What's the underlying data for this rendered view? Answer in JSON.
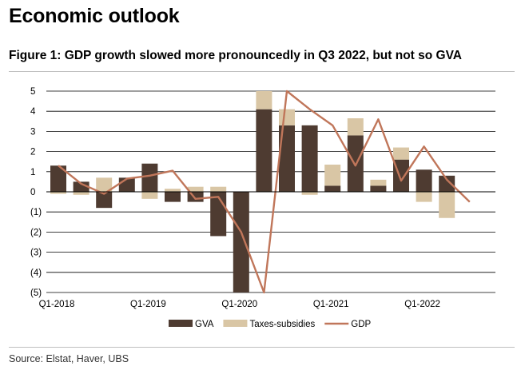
{
  "page": {
    "heading": "Economic outlook",
    "figure_title": "Figure 1: GDP growth slowed more pronouncedly in Q3 2022, but not so GVA",
    "source": "Source: Elstat, Haver, UBS"
  },
  "chart_data": {
    "type": "bar",
    "stacked": true,
    "title": "Figure 1: GDP growth slowed more pronouncedly in Q3 2022, but not so GVA",
    "xlabel": "",
    "ylabel": "",
    "ylim": [
      -5,
      5
    ],
    "y_ticks": [
      "5",
      "4",
      "3",
      "2",
      "1",
      "0",
      "(1)",
      "(2)",
      "(3)",
      "(4)",
      "(5)"
    ],
    "y_tick_values": [
      5,
      4,
      3,
      2,
      1,
      0,
      -1,
      -2,
      -3,
      -4,
      -5
    ],
    "grid": "horizontal",
    "legend_position": "bottom",
    "categories": [
      "Q1-2018",
      "Q2-2018",
      "Q3-2018",
      "Q4-2018",
      "Q1-2019",
      "Q2-2019",
      "Q3-2019",
      "Q4-2019",
      "Q1-2020",
      "Q2-2020",
      "Q3-2020",
      "Q4-2020",
      "Q1-2021",
      "Q2-2021",
      "Q3-2021",
      "Q4-2021",
      "Q1-2022",
      "Q2-2022",
      "Q3-2022"
    ],
    "x_tick_labels": [
      {
        "index": 0,
        "label": "Q1-2018"
      },
      {
        "index": 4,
        "label": "Q1-2019"
      },
      {
        "index": 8,
        "label": "Q1-2020"
      },
      {
        "index": 12,
        "label": "Q1-2021"
      },
      {
        "index": 16,
        "label": "Q1-2022"
      }
    ],
    "series": [
      {
        "name": "GVA",
        "kind": "bar",
        "color": "#4e3b31",
        "values": [
          1.3,
          0.5,
          -0.8,
          0.7,
          1.4,
          -0.5,
          -0.5,
          -2.2,
          -5.0,
          4.1,
          3.3,
          3.3,
          0.3,
          2.8,
          0.3,
          1.6,
          1.1,
          0.8,
          null
        ]
      },
      {
        "name": "Taxes-subsidies",
        "kind": "bar",
        "color": "#d9c6a5",
        "values": [
          -0.1,
          -0.15,
          0.7,
          0.0,
          -0.35,
          0.15,
          0.25,
          0.25,
          0.0,
          0.9,
          0.8,
          -0.15,
          1.05,
          0.85,
          0.3,
          0.6,
          -0.5,
          -1.3,
          null
        ]
      },
      {
        "name": "GDP",
        "kind": "line",
        "color": "#c0765a",
        "values": [
          1.3,
          0.4,
          -0.1,
          0.65,
          0.8,
          1.05,
          -0.35,
          -0.25,
          -2.0,
          -5.0,
          5.0,
          4.1,
          3.3,
          1.3,
          3.6,
          0.55,
          2.25,
          0.6,
          -0.5
        ]
      }
    ],
    "x_positions_note": ""
  }
}
